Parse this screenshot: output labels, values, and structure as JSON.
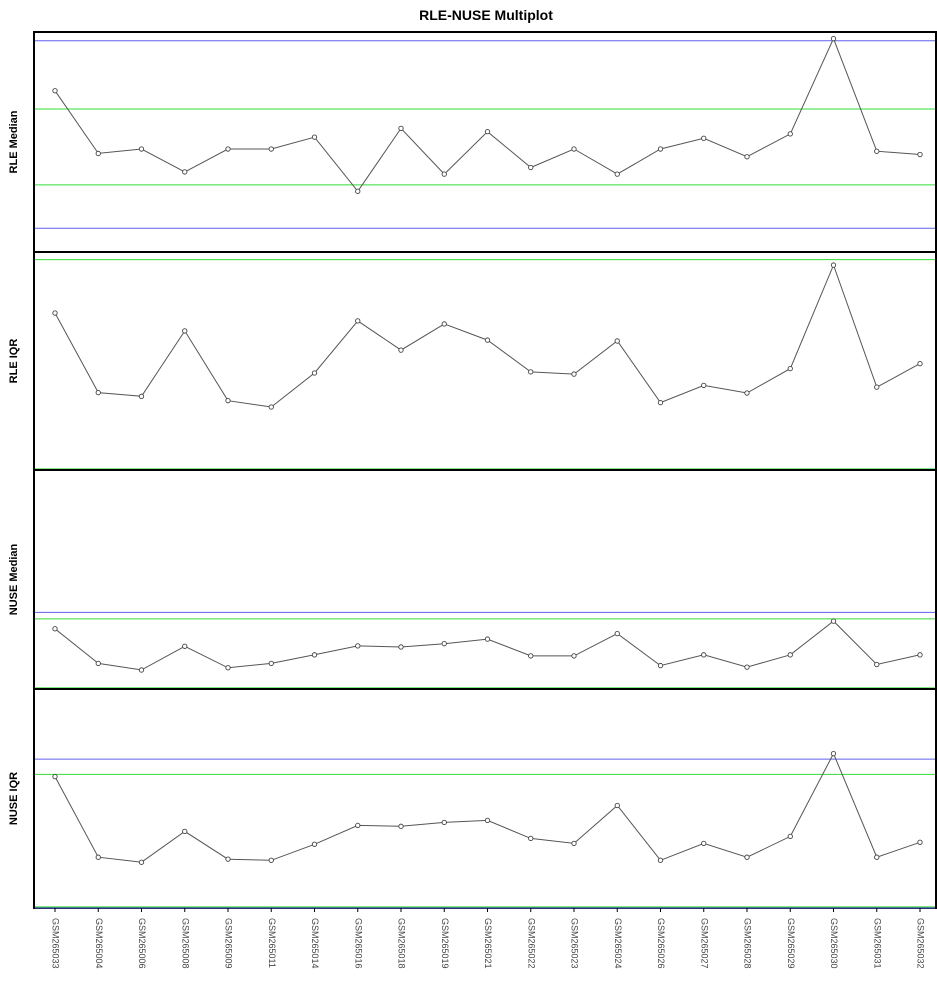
{
  "chart_data": {
    "type": "line",
    "title": "RLE-NUSE Multiplot",
    "categories": [
      "GSM265033",
      "GSM265004",
      "GSM265006",
      "GSM265008",
      "GSM265009",
      "GSM265011",
      "GSM265014",
      "GSM265016",
      "GSM265018",
      "GSM265019",
      "GSM265021",
      "GSM265022",
      "GSM265023",
      "GSM265024",
      "GSM265026",
      "GSM265027",
      "GSM265028",
      "GSM265029",
      "GSM265030",
      "GSM265031",
      "GSM265032"
    ],
    "colors": {
      "series": "#555555",
      "point": "#444444",
      "blue_line": "#6060ee",
      "green_line": "#33dd33",
      "frame": "#000000"
    },
    "panels": [
      {
        "ylabel": "RLE Median",
        "ylim": [
          0,
          1
        ],
        "values": [
          0.733,
          0.448,
          0.468,
          0.364,
          0.468,
          0.468,
          0.522,
          0.276,
          0.562,
          0.354,
          0.547,
          0.384,
          0.468,
          0.354,
          0.468,
          0.517,
          0.433,
          0.537,
          0.97,
          0.458,
          0.443
        ],
        "green_lines": [
          0.65,
          0.305
        ],
        "blue_lines": [
          0.96,
          0.108
        ]
      },
      {
        "ylabel": "RLE IQR",
        "ylim": [
          0,
          1
        ],
        "values": [
          0.72,
          0.355,
          0.338,
          0.638,
          0.318,
          0.289,
          0.445,
          0.684,
          0.55,
          0.67,
          0.596,
          0.45,
          0.44,
          0.592,
          0.309,
          0.388,
          0.353,
          0.465,
          0.94,
          0.38,
          0.488
        ],
        "green_lines": [
          0.965,
          0.005
        ],
        "blue_lines": [
          0.0
        ]
      },
      {
        "ylabel": "NUSE Median",
        "ylim": [
          0,
          1
        ],
        "values": [
          0.275,
          0.117,
          0.087,
          0.195,
          0.097,
          0.117,
          0.156,
          0.197,
          0.192,
          0.207,
          0.228,
          0.151,
          0.151,
          0.253,
          0.107,
          0.156,
          0.1,
          0.156,
          0.31,
          0.112,
          0.156
        ],
        "green_lines": [
          0.32,
          0.005
        ],
        "blue_lines": [
          0.35,
          0.0
        ]
      },
      {
        "ylabel": "NUSE IQR",
        "ylim": [
          0,
          1
        ],
        "values": [
          0.6,
          0.232,
          0.209,
          0.35,
          0.223,
          0.218,
          0.291,
          0.377,
          0.373,
          0.391,
          0.4,
          0.318,
          0.295,
          0.468,
          0.218,
          0.295,
          0.232,
          0.327,
          0.705,
          0.232,
          0.3
        ],
        "green_lines": [
          0.61,
          0.005
        ],
        "blue_lines": [
          0.68,
          0.0
        ]
      }
    ]
  }
}
